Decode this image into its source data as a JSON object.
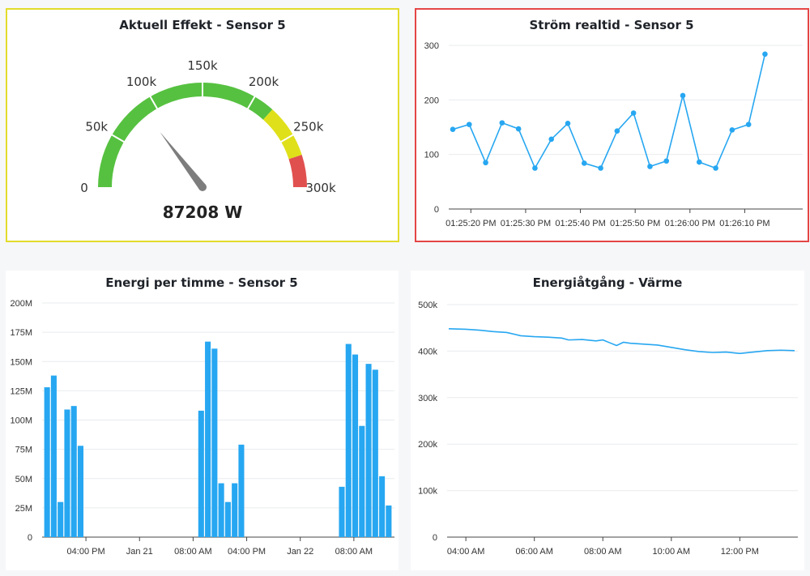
{
  "colors": {
    "series": "#27a7f1",
    "gauge_green": "#56c140",
    "gauge_yellow": "#dfe01a",
    "gauge_red": "#e0504f",
    "needle": "#7d7d7d",
    "panel1_border": "#e3dc2c",
    "panel2_border": "#e44545",
    "grid": "#e9ebee"
  },
  "chart_data": [
    {
      "type": "gauge",
      "title": "Aktuell Effekt - Sensor 5",
      "value": 87208,
      "value_label": "87208 W",
      "min": 0,
      "max": 300000,
      "tick_labels": [
        "0",
        "50k",
        "100k",
        "150k",
        "200k",
        "250k",
        "300k"
      ],
      "tick_values": [
        0,
        50000,
        100000,
        150000,
        200000,
        250000,
        300000
      ],
      "bands": [
        {
          "from": 0,
          "to": 220000,
          "color": "green"
        },
        {
          "from": 220000,
          "to": 270000,
          "color": "yellow"
        },
        {
          "from": 270000,
          "to": 300000,
          "color": "red"
        }
      ]
    },
    {
      "type": "line",
      "title": "Ström realtid - Sensor 5",
      "x_tick_labels": [
        "01:25:20 PM",
        "01:25:30 PM",
        "01:25:40 PM",
        "01:25:50 PM",
        "01:26:00 PM",
        "01:26:10 PM"
      ],
      "y_tick_labels": [
        "0",
        "100",
        "200",
        "300"
      ],
      "ylim": [
        0,
        300
      ],
      "x_seconds_range": [
        0,
        63
      ],
      "series": [
        {
          "markers": true,
          "points": [
            [
              0,
              146
            ],
            [
              3,
              155
            ],
            [
              6,
              85
            ],
            [
              9,
              158
            ],
            [
              12,
              147
            ],
            [
              15,
              75
            ],
            [
              18,
              128
            ],
            [
              21,
              157
            ],
            [
              24,
              84
            ],
            [
              27,
              75
            ],
            [
              30,
              143
            ],
            [
              33,
              176
            ],
            [
              36,
              78
            ],
            [
              39,
              88
            ],
            [
              42,
              208
            ],
            [
              45,
              86
            ],
            [
              48,
              75
            ],
            [
              51,
              145
            ],
            [
              54,
              155
            ],
            [
              57,
              284
            ]
          ]
        }
      ]
    },
    {
      "type": "bar",
      "title": "Energi per timme - Sensor 5",
      "x_tick_labels": [
        "04:00 PM",
        "Jan 21",
        "08:00 AM",
        "04:00 PM",
        "Jan 22",
        "08:00 AM"
      ],
      "y_tick_labels": [
        "0",
        "25M",
        "50M",
        "75M",
        "100M",
        "125M",
        "150M",
        "175M",
        "200M"
      ],
      "ylim": [
        0,
        200000000
      ],
      "hour_range": [
        0,
        52
      ],
      "series": [
        {
          "bars": [
            [
              0,
              128
            ],
            [
              1,
              138
            ],
            [
              2,
              30
            ],
            [
              3,
              109
            ],
            [
              4,
              112
            ],
            [
              5,
              78
            ],
            [
              23,
              108
            ],
            [
              24,
              167
            ],
            [
              25,
              161
            ],
            [
              26,
              46
            ],
            [
              27,
              30
            ],
            [
              28,
              46
            ],
            [
              29,
              79
            ],
            [
              44,
              43
            ],
            [
              45,
              165
            ],
            [
              46,
              156
            ],
            [
              47,
              95
            ],
            [
              48,
              148
            ],
            [
              49,
              143
            ],
            [
              50,
              52
            ],
            [
              51,
              27
            ]
          ],
          "bar_unit": "M"
        }
      ]
    },
    {
      "type": "line",
      "title": "Energiåtgång - Värme",
      "x_tick_labels": [
        "04:00 AM",
        "06:00 AM",
        "08:00 AM",
        "10:00 AM",
        "12:00 PM"
      ],
      "y_tick_labels": [
        "0",
        "100k",
        "200k",
        "300k",
        "400k",
        "500k"
      ],
      "ylim": [
        0,
        500000
      ],
      "x_hours_range": [
        3.5,
        13.6
      ],
      "series": [
        {
          "markers": false,
          "points": [
            [
              3.5,
              448000
            ],
            [
              4.0,
              447000
            ],
            [
              4.4,
              445000
            ],
            [
              4.8,
              442000
            ],
            [
              5.2,
              440000
            ],
            [
              5.6,
              433000
            ],
            [
              6.0,
              431000
            ],
            [
              6.4,
              430000
            ],
            [
              6.8,
              428000
            ],
            [
              7.0,
              424000
            ],
            [
              7.4,
              425000
            ],
            [
              7.8,
              422000
            ],
            [
              8.0,
              424000
            ],
            [
              8.2,
              418000
            ],
            [
              8.4,
              412000
            ],
            [
              8.6,
              419000
            ],
            [
              8.8,
              417000
            ],
            [
              9.2,
              415000
            ],
            [
              9.6,
              413000
            ],
            [
              10.0,
              408000
            ],
            [
              10.4,
              403000
            ],
            [
              10.8,
              399000
            ],
            [
              11.2,
              397000
            ],
            [
              11.6,
              398000
            ],
            [
              12.0,
              395000
            ],
            [
              12.4,
              398000
            ],
            [
              12.8,
              401000
            ],
            [
              13.2,
              402000
            ],
            [
              13.6,
              401000
            ]
          ]
        }
      ]
    }
  ]
}
